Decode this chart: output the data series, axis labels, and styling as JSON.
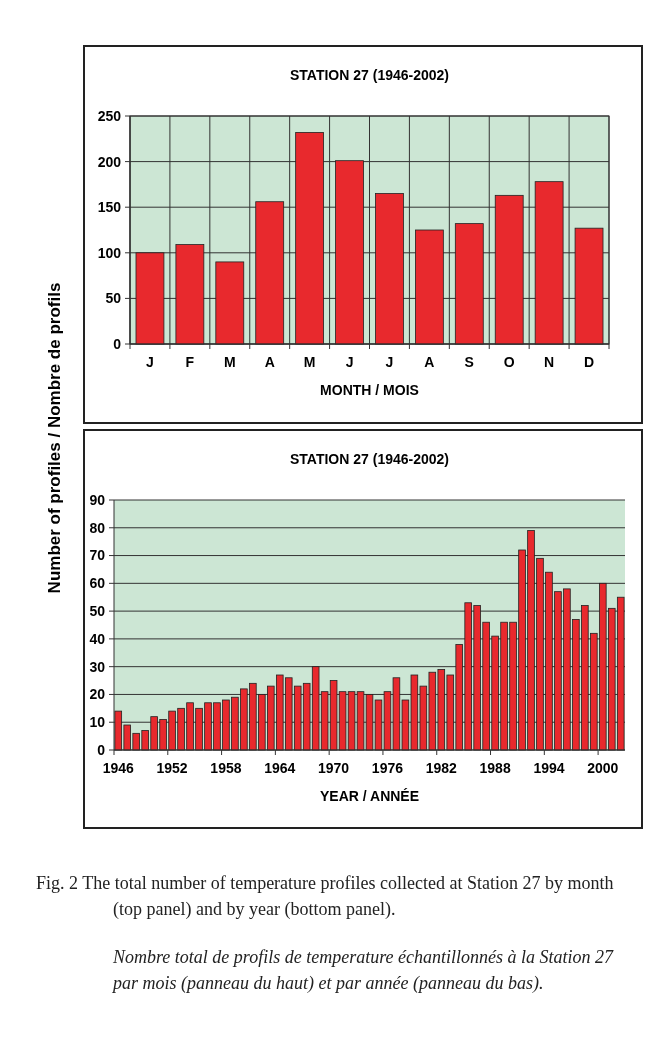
{
  "chart_data": [
    {
      "type": "bar",
      "title": "STATION 27 (1946-2002)",
      "xlabel": "MONTH / MOIS",
      "ylabel": "Number of profiles / Nombre de profils",
      "categories": [
        "J",
        "F",
        "M",
        "A",
        "M",
        "J",
        "J",
        "A",
        "S",
        "O",
        "N",
        "D"
      ],
      "values": [
        100,
        109,
        90,
        156,
        232,
        201,
        165,
        125,
        132,
        163,
        178,
        127
      ],
      "color": "#e8292d",
      "ylim": [
        0,
        250
      ],
      "yticks": [
        0,
        50,
        100,
        150,
        200,
        250
      ],
      "grid": true
    },
    {
      "type": "bar",
      "title": "STATION 27 (1946-2002)",
      "xlabel": "YEAR / ANNÉE",
      "categories": [
        "1946",
        null,
        null,
        null,
        null,
        null,
        "1952",
        null,
        null,
        null,
        null,
        null,
        "1958",
        null,
        null,
        null,
        null,
        null,
        "1964",
        null,
        null,
        null,
        null,
        null,
        "1970",
        null,
        null,
        null,
        null,
        null,
        "1976",
        null,
        null,
        null,
        null,
        null,
        "1982",
        null,
        null,
        null,
        null,
        null,
        "1988",
        null,
        null,
        null,
        null,
        null,
        "1994",
        null,
        null,
        null,
        null,
        null,
        "2000",
        null,
        null
      ],
      "values": [
        14,
        9,
        6,
        7,
        12,
        11,
        14,
        15,
        17,
        15,
        17,
        17,
        18,
        19,
        22,
        24,
        20,
        23,
        27,
        26,
        23,
        24,
        30,
        21,
        25,
        21,
        21,
        21,
        20,
        18,
        21,
        26,
        18,
        27,
        23,
        28,
        29,
        27,
        38,
        53,
        52,
        46,
        41,
        46,
        46,
        72,
        79,
        69,
        64,
        57,
        58,
        47,
        52,
        42,
        60,
        51,
        55
      ],
      "color": "#e8292d",
      "ylim": [
        0,
        90
      ],
      "yticks": [
        0,
        10,
        20,
        30,
        40,
        50,
        60,
        70,
        80,
        90
      ],
      "grid": "y",
      "annotations": [
        "Fig. 2  The total number of temperature profiles collected at Station 27 by month (top panel) and by year (bottom panel).",
        "Nombre total de profils de temperature échantillonnés à la Station 27 par mois (panneau du haut) et par année (panneau du bas)."
      ]
    }
  ]
}
